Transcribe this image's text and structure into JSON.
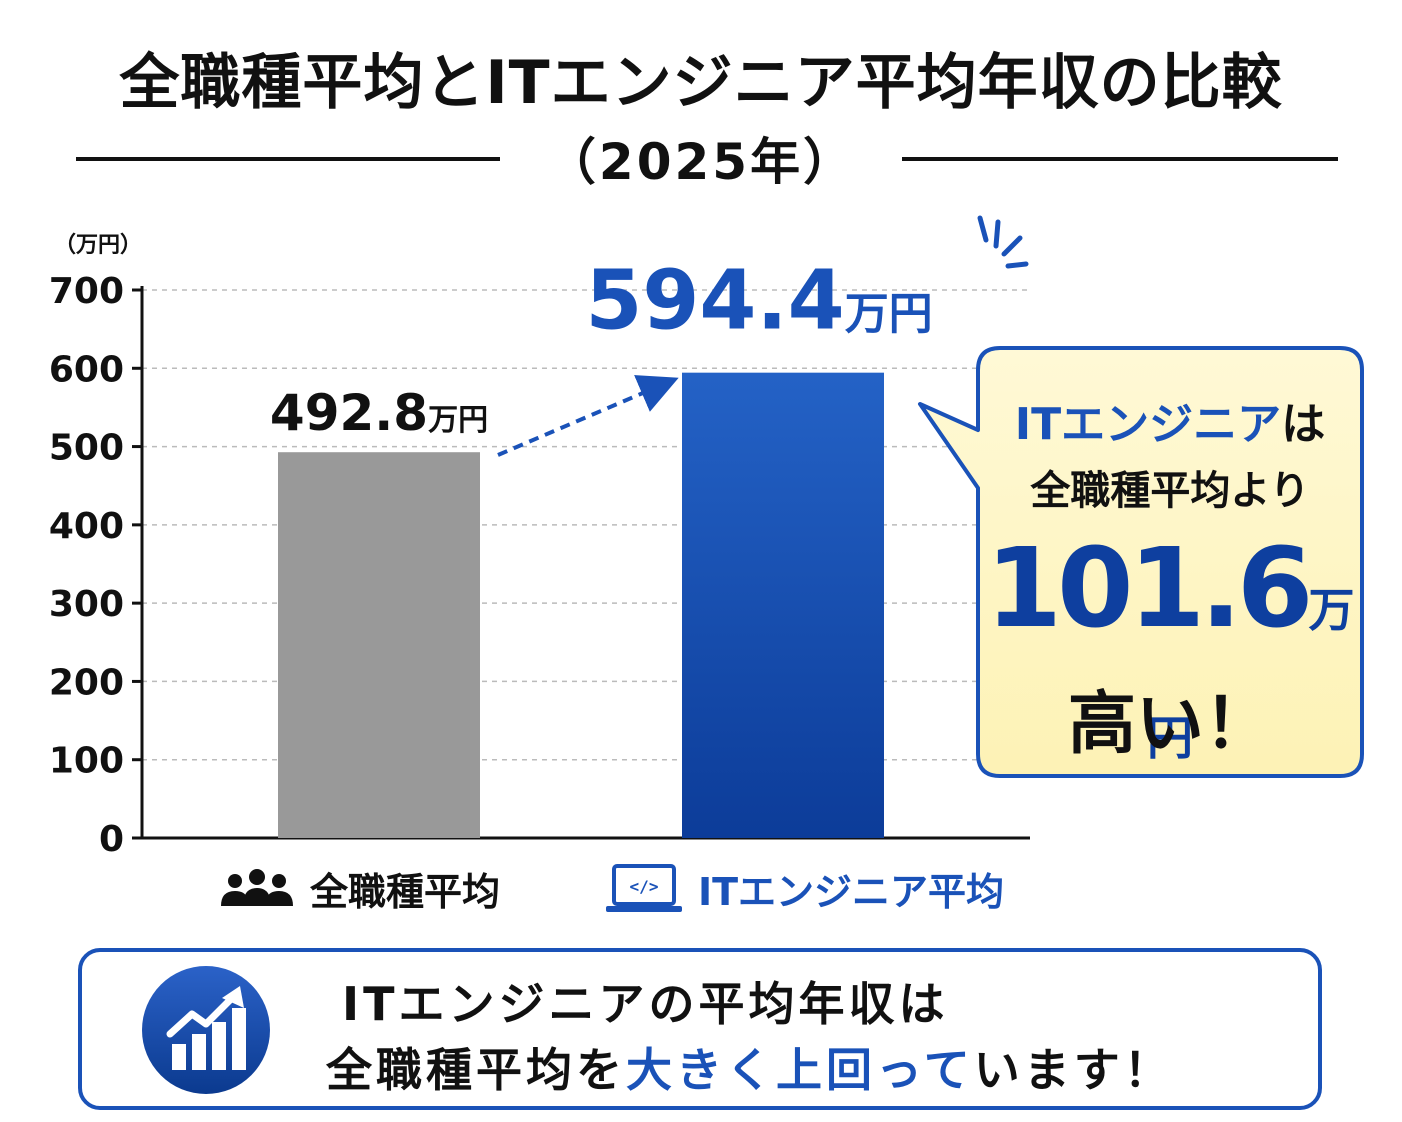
{
  "title": "全職種平均とITエンジニア平均年収の比較",
  "year": "（2025年）",
  "chart_data": {
    "type": "bar",
    "unit_label": "（万円）",
    "categories": [
      "全職種平均",
      "ITエンジニア平均"
    ],
    "values": [
      492.8,
      594.4
    ],
    "ylim": [
      0,
      700
    ],
    "yticks": [
      0,
      100,
      200,
      300,
      400,
      500,
      600,
      700
    ],
    "grid": true,
    "colors": [
      "#999999",
      "#1a52b8"
    ],
    "value_labels": [
      {
        "num": "492.8",
        "unit": "万円"
      },
      {
        "num": "594.4",
        "unit": "万円"
      }
    ]
  },
  "callout": {
    "line1_highlight": "ITエンジニア",
    "line1_rest": "は",
    "line2": "全職種平均より",
    "diff_value": "101.6",
    "diff_unit": "万円",
    "line4": "高い！"
  },
  "legend": {
    "gray_icon": "people-icon",
    "gray_label": "全職種平均",
    "blue_icon": "laptop-code-icon",
    "blue_label": "ITエンジニア平均"
  },
  "summary": {
    "icon": "growth-chart-icon",
    "line1": "ITエンジニアの平均年収は",
    "line2_prefix": "全職種平均を",
    "line2_highlight": "大きく上回って",
    "line2_suffix": "います！"
  }
}
